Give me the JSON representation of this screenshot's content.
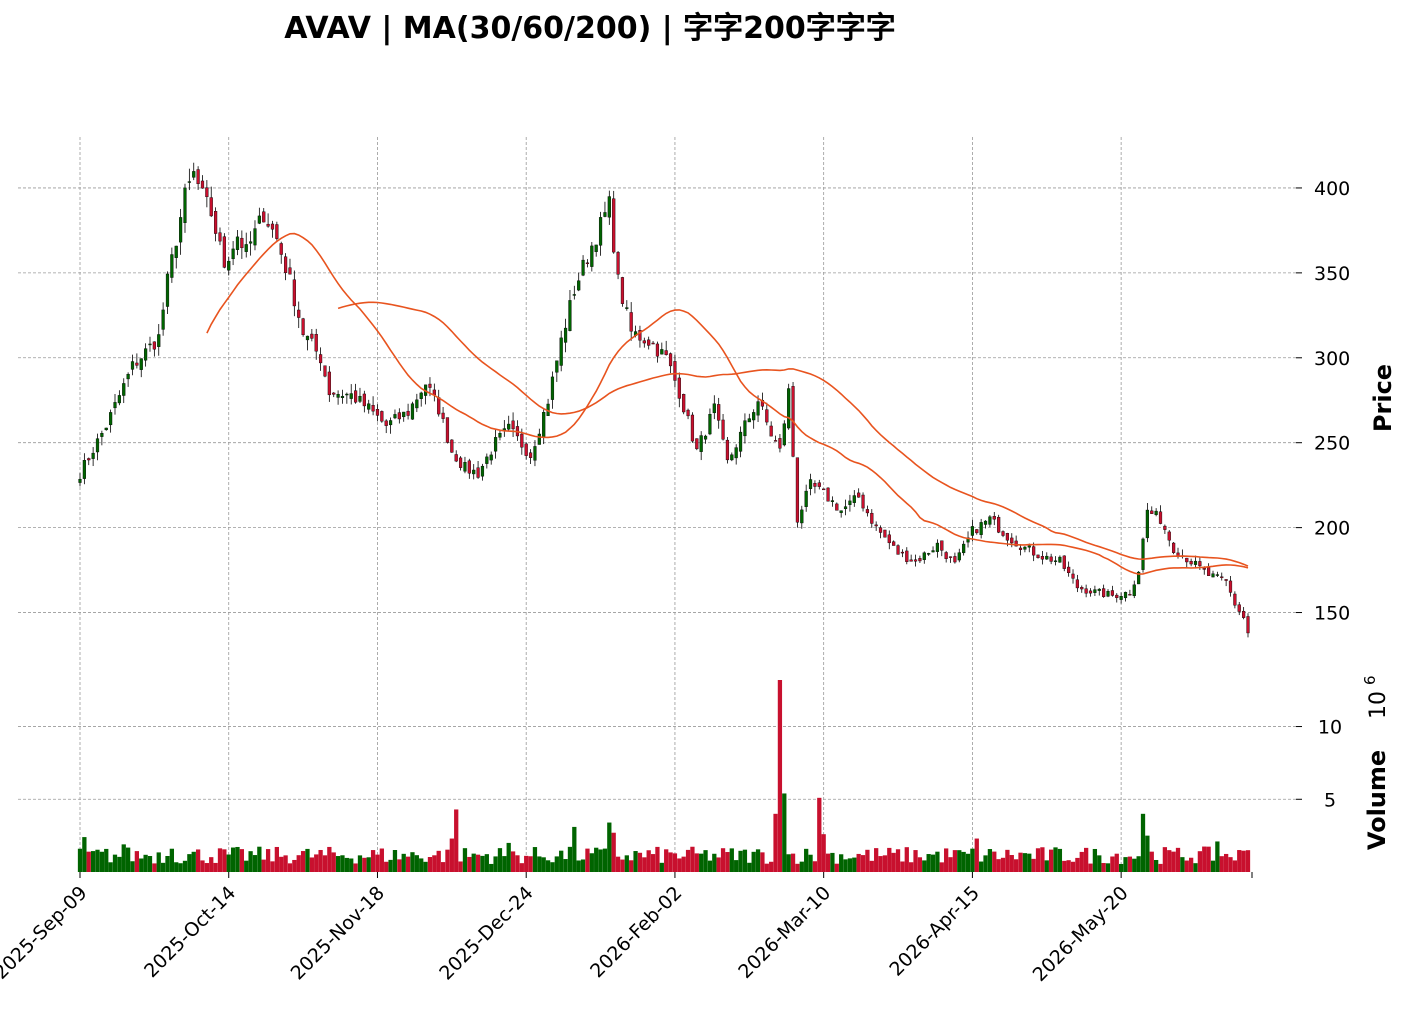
{
  "title": "AVAV | MA(30/60/200) | 字字200字字字",
  "chart_data": [
    {
      "type": "candlestick",
      "ylabel": "Price",
      "ylim": [
        125,
        430
      ],
      "yticks": [
        150,
        200,
        250,
        300,
        350,
        400
      ],
      "xticks": [
        "2025-Sep-09",
        "2025-Oct-14",
        "2025-Nov-18",
        "2025-Dec-24",
        "2026-Feb-02",
        "2026-Mar-10",
        "2026-Apr-15",
        "2026-May-20"
      ],
      "grid": true,
      "up_color": "#006400",
      "down_color": "#c8102e",
      "ma_colors": [
        "#e8541f",
        "#e8541f"
      ],
      "close_anchors": [
        [
          0,
          232
        ],
        [
          6,
          260
        ],
        [
          12,
          295
        ],
        [
          18,
          312
        ],
        [
          20,
          345
        ],
        [
          22,
          370
        ],
        [
          24,
          395
        ],
        [
          26,
          408
        ],
        [
          28,
          395
        ],
        [
          30,
          385
        ],
        [
          33,
          355
        ],
        [
          36,
          372
        ],
        [
          38,
          362
        ],
        [
          42,
          385
        ],
        [
          45,
          370
        ],
        [
          48,
          345
        ],
        [
          51,
          315
        ],
        [
          55,
          300
        ],
        [
          57,
          280
        ],
        [
          62,
          278
        ],
        [
          66,
          270
        ],
        [
          70,
          260
        ],
        [
          75,
          268
        ],
        [
          79,
          285
        ],
        [
          82,
          270
        ],
        [
          85,
          245
        ],
        [
          88,
          235
        ],
        [
          91,
          232
        ],
        [
          95,
          250
        ],
        [
          98,
          258
        ],
        [
          103,
          243
        ],
        [
          107,
          275
        ],
        [
          110,
          310
        ],
        [
          113,
          340
        ],
        [
          116,
          360
        ],
        [
          119,
          378
        ],
        [
          121,
          390
        ],
        [
          123,
          345
        ],
        [
          126,
          315
        ],
        [
          130,
          310
        ],
        [
          134,
          300
        ],
        [
          137,
          280
        ],
        [
          141,
          245
        ],
        [
          145,
          270
        ],
        [
          148,
          238
        ],
        [
          152,
          260
        ],
        [
          155,
          275
        ],
        [
          158,
          255
        ],
        [
          160,
          245
        ],
        [
          162,
          280
        ],
        [
          164,
          205
        ],
        [
          167,
          225
        ],
        [
          170,
          220
        ],
        [
          174,
          210
        ],
        [
          178,
          218
        ],
        [
          182,
          200
        ],
        [
          187,
          185
        ],
        [
          191,
          180
        ],
        [
          196,
          190
        ],
        [
          200,
          178
        ],
        [
          204,
          198
        ],
        [
          208,
          205
        ],
        [
          212,
          195
        ],
        [
          216,
          188
        ],
        [
          220,
          183
        ],
        [
          224,
          180
        ],
        [
          228,
          165
        ],
        [
          232,
          162
        ],
        [
          236,
          160
        ],
        [
          240,
          162
        ],
        [
          242,
          175
        ],
        [
          244,
          210
        ],
        [
          247,
          205
        ],
        [
          250,
          188
        ],
        [
          254,
          180
        ],
        [
          258,
          172
        ],
        [
          262,
          168
        ],
        [
          264,
          155
        ],
        [
          266,
          147
        ],
        [
          267,
          138
        ]
      ],
      "volume": {
        "ylabel": "Volume",
        "exponent_label": "10",
        "exponent": "6",
        "yticks": [
          5,
          10
        ],
        "ylim": [
          0,
          13.2
        ],
        "spike_anchors": [
          [
            0,
            1.6
          ],
          [
            1,
            2.4
          ],
          [
            10,
            1.9
          ],
          [
            21,
            1.6
          ],
          [
            85,
            2.3
          ],
          [
            86,
            4.3
          ],
          [
            98,
            2.0
          ],
          [
            113,
            3.1
          ],
          [
            121,
            3.4
          ],
          [
            122,
            2.7
          ],
          [
            159,
            4.0
          ],
          [
            160,
            13.2
          ],
          [
            161,
            5.4
          ],
          [
            169,
            5.1
          ],
          [
            170,
            2.6
          ],
          [
            205,
            2.3
          ],
          [
            243,
            4.0
          ],
          [
            244,
            2.5
          ],
          [
            260,
            2.1
          ],
          [
            267,
            1.5
          ]
        ]
      }
    }
  ]
}
